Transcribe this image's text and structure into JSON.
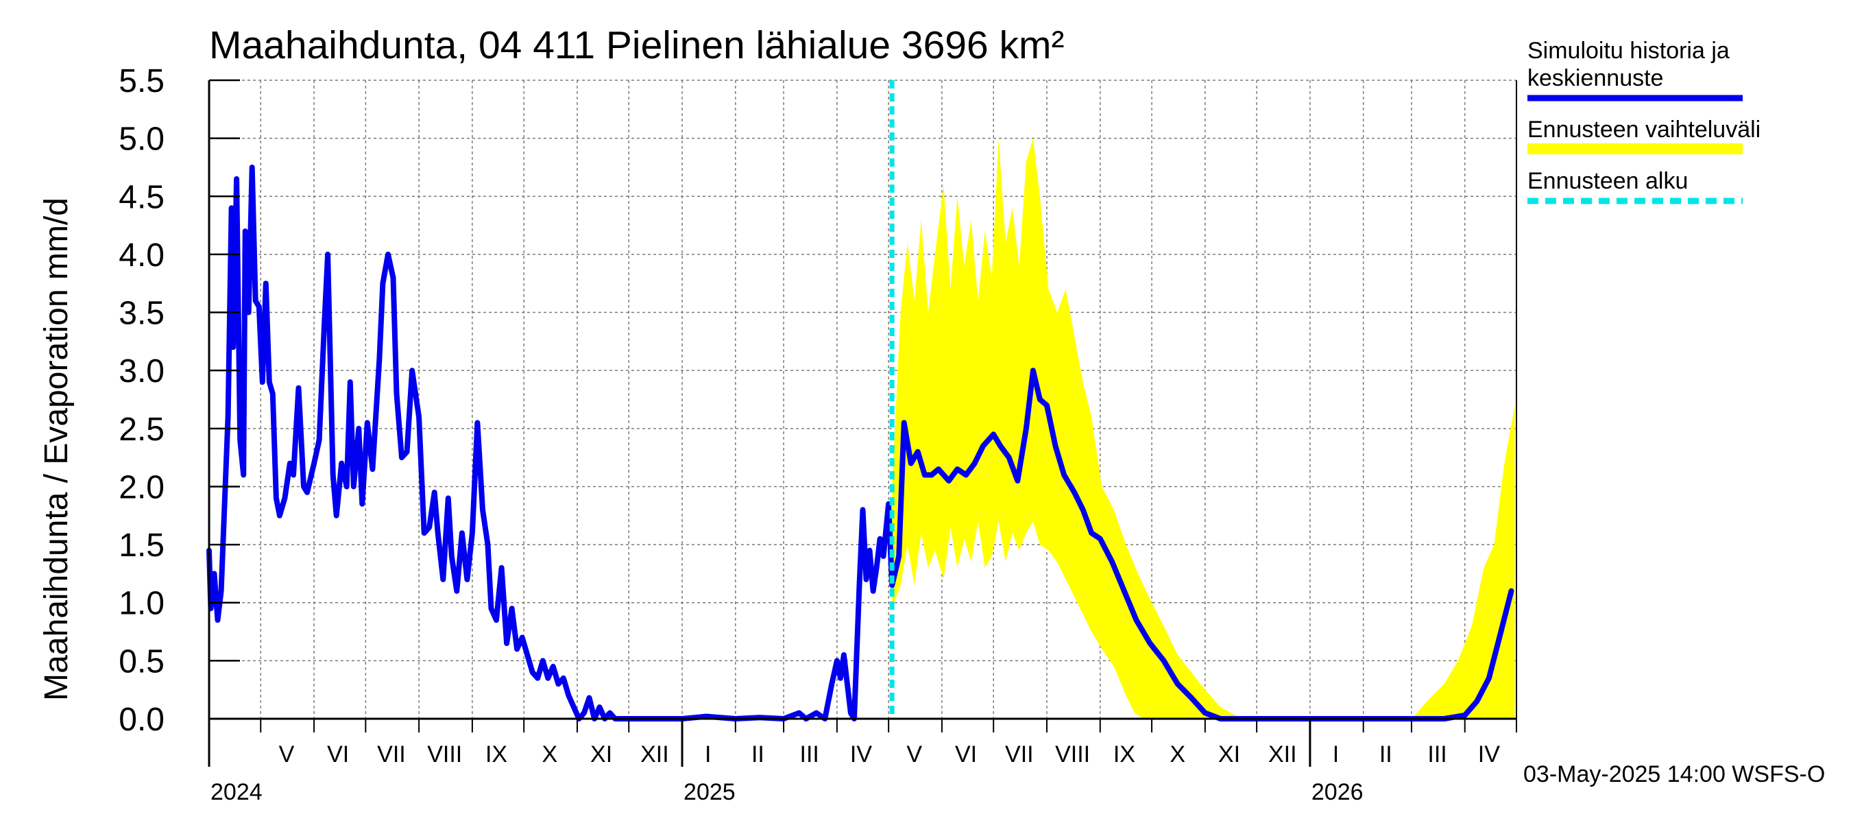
{
  "chart_data": {
    "type": "area",
    "title": "Maahaihdunta, 04 411 Pielinen lähialue 3696 km²",
    "ylabel": "Maahaihdunta / Evaporation   mm/d",
    "ylim": [
      0,
      5.5
    ],
    "yticks": [
      "0.0",
      "0.5",
      "1.0",
      "1.5",
      "2.0",
      "2.5",
      "3.0",
      "3.5",
      "4.0",
      "4.5",
      "5.0",
      "5.5"
    ],
    "xlim": [
      "2024-04-01",
      "2026-05-01"
    ],
    "grid": true,
    "legend_position": "right",
    "month_labels": [
      {
        "label": "V",
        "date": "2024-05-16"
      },
      {
        "label": "VI",
        "date": "2024-06-15"
      },
      {
        "label": "VII",
        "date": "2024-07-16"
      },
      {
        "label": "VIII",
        "date": "2024-08-16"
      },
      {
        "label": "IX",
        "date": "2024-09-15"
      },
      {
        "label": "X",
        "date": "2024-10-16"
      },
      {
        "label": "XI",
        "date": "2024-11-15"
      },
      {
        "label": "XII",
        "date": "2024-12-16"
      },
      {
        "label": "I",
        "date": "2025-01-16"
      },
      {
        "label": "II",
        "date": "2025-02-14"
      },
      {
        "label": "III",
        "date": "2025-03-16"
      },
      {
        "label": "IV",
        "date": "2025-04-15"
      },
      {
        "label": "V",
        "date": "2025-05-16"
      },
      {
        "label": "VI",
        "date": "2025-06-15"
      },
      {
        "label": "VII",
        "date": "2025-07-16"
      },
      {
        "label": "VIII",
        "date": "2025-08-16"
      },
      {
        "label": "IX",
        "date": "2025-09-15"
      },
      {
        "label": "X",
        "date": "2025-10-16"
      },
      {
        "label": "XI",
        "date": "2025-11-15"
      },
      {
        "label": "XII",
        "date": "2025-12-16"
      },
      {
        "label": "I",
        "date": "2026-01-16"
      },
      {
        "label": "II",
        "date": "2026-02-14"
      },
      {
        "label": "III",
        "date": "2026-03-16"
      },
      {
        "label": "IV",
        "date": "2026-04-15"
      }
    ],
    "year_labels": [
      {
        "label": "2024",
        "date": "2024-04-01"
      },
      {
        "label": "2025",
        "date": "2025-01-01"
      },
      {
        "label": "2026",
        "date": "2026-01-01"
      }
    ],
    "forecast_start": "2025-05-03",
    "series": [
      {
        "name": "Simuloitu historia ja keskiennuste",
        "color": "#0000ee",
        "points": [
          [
            "2024-04-01",
            1.45
          ],
          [
            "2024-04-02",
            0.95
          ],
          [
            "2024-04-04",
            1.25
          ],
          [
            "2024-04-06",
            0.85
          ],
          [
            "2024-04-08",
            1.1
          ],
          [
            "2024-04-10",
            1.85
          ],
          [
            "2024-04-12",
            2.6
          ],
          [
            "2024-04-14",
            4.4
          ],
          [
            "2024-04-15",
            3.2
          ],
          [
            "2024-04-17",
            4.65
          ],
          [
            "2024-04-19",
            2.4
          ],
          [
            "2024-04-21",
            2.1
          ],
          [
            "2024-04-22",
            4.2
          ],
          [
            "2024-04-24",
            3.5
          ],
          [
            "2024-04-26",
            4.75
          ],
          [
            "2024-04-28",
            3.6
          ],
          [
            "2024-04-30",
            3.55
          ],
          [
            "2024-05-02",
            2.9
          ],
          [
            "2024-05-04",
            3.75
          ],
          [
            "2024-05-06",
            2.9
          ],
          [
            "2024-05-08",
            2.8
          ],
          [
            "2024-05-10",
            1.9
          ],
          [
            "2024-05-12",
            1.75
          ],
          [
            "2024-05-15",
            1.9
          ],
          [
            "2024-05-18",
            2.2
          ],
          [
            "2024-05-20",
            2.1
          ],
          [
            "2024-05-23",
            2.85
          ],
          [
            "2024-05-26",
            2.0
          ],
          [
            "2024-05-28",
            1.95
          ],
          [
            "2024-06-01",
            2.2
          ],
          [
            "2024-06-04",
            2.4
          ],
          [
            "2024-06-07",
            3.4
          ],
          [
            "2024-06-09",
            4.0
          ],
          [
            "2024-06-12",
            2.1
          ],
          [
            "2024-06-14",
            1.75
          ],
          [
            "2024-06-17",
            2.2
          ],
          [
            "2024-06-20",
            2.0
          ],
          [
            "2024-06-22",
            2.9
          ],
          [
            "2024-06-24",
            2.0
          ],
          [
            "2024-06-27",
            2.5
          ],
          [
            "2024-06-29",
            1.85
          ],
          [
            "2024-07-02",
            2.55
          ],
          [
            "2024-07-05",
            2.15
          ],
          [
            "2024-07-09",
            3.1
          ],
          [
            "2024-07-11",
            3.75
          ],
          [
            "2024-07-14",
            4.0
          ],
          [
            "2024-07-17",
            3.8
          ],
          [
            "2024-07-19",
            2.8
          ],
          [
            "2024-07-22",
            2.25
          ],
          [
            "2024-07-25",
            2.3
          ],
          [
            "2024-07-28",
            3.0
          ],
          [
            "2024-08-01",
            2.6
          ],
          [
            "2024-08-04",
            1.6
          ],
          [
            "2024-08-07",
            1.65
          ],
          [
            "2024-08-10",
            1.95
          ],
          [
            "2024-08-12",
            1.6
          ],
          [
            "2024-08-15",
            1.2
          ],
          [
            "2024-08-18",
            1.9
          ],
          [
            "2024-08-20",
            1.4
          ],
          [
            "2024-08-23",
            1.1
          ],
          [
            "2024-08-26",
            1.6
          ],
          [
            "2024-08-29",
            1.2
          ],
          [
            "2024-09-01",
            1.6
          ],
          [
            "2024-09-04",
            2.55
          ],
          [
            "2024-09-07",
            1.8
          ],
          [
            "2024-09-10",
            1.5
          ],
          [
            "2024-09-12",
            0.95
          ],
          [
            "2024-09-15",
            0.85
          ],
          [
            "2024-09-18",
            1.3
          ],
          [
            "2024-09-21",
            0.65
          ],
          [
            "2024-09-24",
            0.95
          ],
          [
            "2024-09-27",
            0.6
          ],
          [
            "2024-09-30",
            0.7
          ],
          [
            "2024-10-03",
            0.55
          ],
          [
            "2024-10-06",
            0.4
          ],
          [
            "2024-10-09",
            0.35
          ],
          [
            "2024-10-12",
            0.5
          ],
          [
            "2024-10-15",
            0.35
          ],
          [
            "2024-10-18",
            0.45
          ],
          [
            "2024-10-21",
            0.3
          ],
          [
            "2024-10-24",
            0.35
          ],
          [
            "2024-10-27",
            0.2
          ],
          [
            "2024-10-30",
            0.1
          ],
          [
            "2024-11-02",
            0.0
          ],
          [
            "2024-11-05",
            0.05
          ],
          [
            "2024-11-08",
            0.18
          ],
          [
            "2024-11-11",
            0.0
          ],
          [
            "2024-11-14",
            0.1
          ],
          [
            "2024-11-17",
            0.0
          ],
          [
            "2024-11-20",
            0.05
          ],
          [
            "2024-11-23",
            0.0
          ],
          [
            "2024-12-01",
            0.0
          ],
          [
            "2024-12-15",
            0.0
          ],
          [
            "2025-01-01",
            0.0
          ],
          [
            "2025-01-15",
            0.02
          ],
          [
            "2025-02-01",
            0.0
          ],
          [
            "2025-02-15",
            0.01
          ],
          [
            "2025-03-01",
            0.0
          ],
          [
            "2025-03-10",
            0.05
          ],
          [
            "2025-03-14",
            0.0
          ],
          [
            "2025-03-20",
            0.05
          ],
          [
            "2025-03-25",
            0.0
          ],
          [
            "2025-03-29",
            0.3
          ],
          [
            "2025-04-01",
            0.5
          ],
          [
            "2025-04-03",
            0.35
          ],
          [
            "2025-04-05",
            0.55
          ],
          [
            "2025-04-07",
            0.3
          ],
          [
            "2025-04-09",
            0.05
          ],
          [
            "2025-04-11",
            0.0
          ],
          [
            "2025-04-14",
            1.15
          ],
          [
            "2025-04-16",
            1.8
          ],
          [
            "2025-04-18",
            1.2
          ],
          [
            "2025-04-20",
            1.45
          ],
          [
            "2025-04-22",
            1.1
          ],
          [
            "2025-04-24",
            1.3
          ],
          [
            "2025-04-26",
            1.55
          ],
          [
            "2025-04-28",
            1.4
          ],
          [
            "2025-05-01",
            1.85
          ],
          [
            "2025-05-03",
            1.15
          ],
          [
            "2025-05-07",
            1.4
          ],
          [
            "2025-05-10",
            2.55
          ],
          [
            "2025-05-14",
            2.2
          ],
          [
            "2025-05-18",
            2.3
          ],
          [
            "2025-05-22",
            2.1
          ],
          [
            "2025-05-26",
            2.1
          ],
          [
            "2025-05-30",
            2.15
          ],
          [
            "2025-06-05",
            2.05
          ],
          [
            "2025-06-10",
            2.15
          ],
          [
            "2025-06-15",
            2.1
          ],
          [
            "2025-06-20",
            2.2
          ],
          [
            "2025-06-25",
            2.35
          ],
          [
            "2025-07-01",
            2.45
          ],
          [
            "2025-07-05",
            2.35
          ],
          [
            "2025-07-10",
            2.25
          ],
          [
            "2025-07-15",
            2.05
          ],
          [
            "2025-07-20",
            2.5
          ],
          [
            "2025-07-24",
            3.0
          ],
          [
            "2025-07-28",
            2.75
          ],
          [
            "2025-08-01",
            2.7
          ],
          [
            "2025-08-06",
            2.35
          ],
          [
            "2025-08-11",
            2.1
          ],
          [
            "2025-08-17",
            1.95
          ],
          [
            "2025-08-22",
            1.8
          ],
          [
            "2025-08-27",
            1.6
          ],
          [
            "2025-09-01",
            1.55
          ],
          [
            "2025-09-08",
            1.35
          ],
          [
            "2025-09-15",
            1.1
          ],
          [
            "2025-09-22",
            0.85
          ],
          [
            "2025-09-30",
            0.65
          ],
          [
            "2025-10-08",
            0.5
          ],
          [
            "2025-10-16",
            0.3
          ],
          [
            "2025-10-24",
            0.18
          ],
          [
            "2025-11-01",
            0.05
          ],
          [
            "2025-11-10",
            0.0
          ],
          [
            "2025-12-01",
            0.0
          ],
          [
            "2026-01-01",
            0.0
          ],
          [
            "2026-02-01",
            0.0
          ],
          [
            "2026-03-01",
            0.0
          ],
          [
            "2026-03-20",
            0.0
          ],
          [
            "2026-04-01",
            0.03
          ],
          [
            "2026-04-08",
            0.15
          ],
          [
            "2026-04-15",
            0.35
          ],
          [
            "2026-04-22",
            0.75
          ],
          [
            "2026-04-28",
            1.1
          ]
        ]
      },
      {
        "name": "Ennusteen vaihteluväli",
        "color": "#ffff00",
        "upper": [
          [
            "2025-05-03",
            2.0
          ],
          [
            "2025-05-08",
            3.5
          ],
          [
            "2025-05-12",
            4.1
          ],
          [
            "2025-05-16",
            3.6
          ],
          [
            "2025-05-20",
            4.3
          ],
          [
            "2025-05-24",
            3.5
          ],
          [
            "2025-05-28",
            4.0
          ],
          [
            "2025-06-02",
            4.6
          ],
          [
            "2025-06-06",
            3.7
          ],
          [
            "2025-06-10",
            4.5
          ],
          [
            "2025-06-14",
            3.9
          ],
          [
            "2025-06-18",
            4.3
          ],
          [
            "2025-06-22",
            3.6
          ],
          [
            "2025-06-26",
            4.2
          ],
          [
            "2025-06-30",
            3.8
          ],
          [
            "2025-07-04",
            5.0
          ],
          [
            "2025-07-08",
            4.1
          ],
          [
            "2025-07-12",
            4.4
          ],
          [
            "2025-07-16",
            3.9
          ],
          [
            "2025-07-20",
            4.8
          ],
          [
            "2025-07-24",
            5.0
          ],
          [
            "2025-07-28",
            4.5
          ],
          [
            "2025-08-02",
            3.7
          ],
          [
            "2025-08-07",
            3.5
          ],
          [
            "2025-08-12",
            3.7
          ],
          [
            "2025-08-17",
            3.3
          ],
          [
            "2025-08-22",
            2.9
          ],
          [
            "2025-08-27",
            2.6
          ],
          [
            "2025-09-02",
            2.0
          ],
          [
            "2025-09-09",
            1.8
          ],
          [
            "2025-09-16",
            1.5
          ],
          [
            "2025-09-23",
            1.25
          ],
          [
            "2025-10-01",
            1.0
          ],
          [
            "2025-10-08",
            0.8
          ],
          [
            "2025-10-16",
            0.55
          ],
          [
            "2025-10-24",
            0.4
          ],
          [
            "2025-11-01",
            0.25
          ],
          [
            "2025-11-10",
            0.1
          ],
          [
            "2025-11-20",
            0.02
          ],
          [
            "2025-12-01",
            0.0
          ],
          [
            "2026-03-01",
            0.0
          ],
          [
            "2026-03-10",
            0.15
          ],
          [
            "2026-03-20",
            0.3
          ],
          [
            "2026-03-28",
            0.5
          ],
          [
            "2026-04-05",
            0.8
          ],
          [
            "2026-04-12",
            1.3
          ],
          [
            "2026-04-18",
            1.5
          ],
          [
            "2026-04-24",
            2.2
          ],
          [
            "2026-04-30",
            2.7
          ]
        ],
        "lower": [
          [
            "2025-05-03",
            0.95
          ],
          [
            "2025-05-08",
            1.15
          ],
          [
            "2025-05-12",
            1.5
          ],
          [
            "2025-05-16",
            1.15
          ],
          [
            "2025-05-20",
            1.6
          ],
          [
            "2025-05-24",
            1.3
          ],
          [
            "2025-05-28",
            1.45
          ],
          [
            "2025-06-02",
            1.2
          ],
          [
            "2025-06-06",
            1.65
          ],
          [
            "2025-06-10",
            1.3
          ],
          [
            "2025-06-14",
            1.55
          ],
          [
            "2025-06-18",
            1.35
          ],
          [
            "2025-06-22",
            1.7
          ],
          [
            "2025-06-26",
            1.3
          ],
          [
            "2025-06-30",
            1.4
          ],
          [
            "2025-07-04",
            1.7
          ],
          [
            "2025-07-08",
            1.35
          ],
          [
            "2025-07-12",
            1.6
          ],
          [
            "2025-07-16",
            1.45
          ],
          [
            "2025-07-20",
            1.6
          ],
          [
            "2025-07-24",
            1.7
          ],
          [
            "2025-07-28",
            1.5
          ],
          [
            "2025-08-02",
            1.45
          ],
          [
            "2025-08-07",
            1.35
          ],
          [
            "2025-08-12",
            1.2
          ],
          [
            "2025-08-17",
            1.05
          ],
          [
            "2025-08-22",
            0.9
          ],
          [
            "2025-08-27",
            0.75
          ],
          [
            "2025-09-02",
            0.6
          ],
          [
            "2025-09-09",
            0.45
          ],
          [
            "2025-09-16",
            0.2
          ],
          [
            "2025-09-21",
            0.05
          ],
          [
            "2025-09-26",
            0.0
          ],
          [
            "2026-04-30",
            0.0
          ]
        ]
      },
      {
        "name": "Ennusteen alku",
        "color": "#00e5e5"
      }
    ]
  },
  "footer": {
    "timestamp": "03-May-2025 14:00 WSFS-O"
  }
}
